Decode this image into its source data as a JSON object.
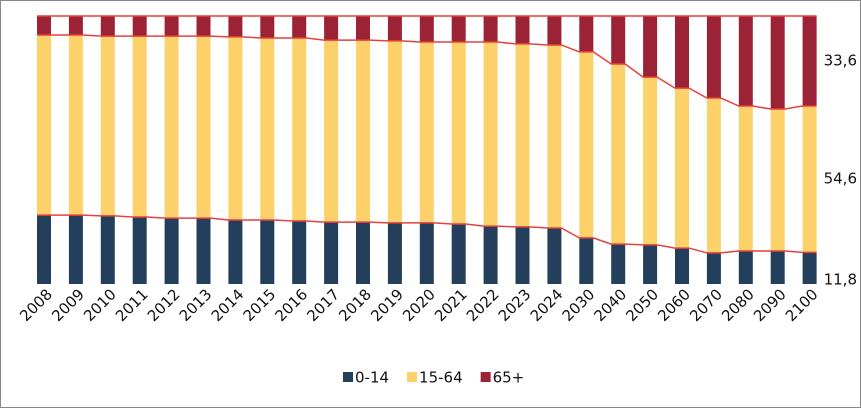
{
  "chart_data": {
    "type": "stacked_bar_100",
    "categories": [
      "2008",
      "2009",
      "2010",
      "2011",
      "2012",
      "2013",
      "2014",
      "2015",
      "2016",
      "2017",
      "2018",
      "2019",
      "2020",
      "2021",
      "2022",
      "2023",
      "2024",
      "2030",
      "2040",
      "2050",
      "2060",
      "2070",
      "2080",
      "2090",
      "2100"
    ],
    "series": [
      {
        "name": "0-14",
        "color": "#243f5c",
        "values": [
          25.7,
          25.7,
          25.4,
          25.0,
          24.6,
          24.6,
          23.9,
          23.9,
          23.5,
          23.1,
          23.1,
          22.8,
          22.8,
          22.4,
          21.6,
          21.3,
          20.9,
          17.2,
          14.9,
          14.6,
          13.4,
          11.6,
          12.3,
          12.3,
          11.8
        ],
        "value_labels": [
          null,
          null,
          null,
          null,
          null,
          null,
          null,
          null,
          null,
          null,
          null,
          null,
          null,
          null,
          null,
          null,
          null,
          null,
          null,
          null,
          null,
          null,
          null,
          null,
          "11,8"
        ]
      },
      {
        "name": "15-64",
        "color": "#fdd16a",
        "values": [
          67.2,
          67.2,
          67.1,
          67.5,
          67.9,
          67.9,
          68.3,
          67.9,
          68.3,
          67.9,
          67.9,
          67.9,
          67.5,
          67.9,
          68.7,
          68.3,
          68.3,
          69.4,
          67.2,
          62.6,
          59.7,
          57.8,
          54.1,
          53.0,
          54.6
        ],
        "value_labels": [
          null,
          null,
          null,
          null,
          null,
          null,
          null,
          null,
          null,
          null,
          null,
          null,
          null,
          null,
          null,
          null,
          null,
          null,
          null,
          null,
          null,
          null,
          null,
          null,
          "54,6"
        ]
      },
      {
        "name": "65+",
        "color": "#9b2335",
        "values": [
          7.1,
          7.1,
          7.5,
          7.5,
          7.5,
          7.5,
          7.8,
          8.2,
          8.2,
          9.0,
          9.0,
          9.3,
          9.7,
          9.7,
          9.7,
          10.4,
          10.8,
          13.4,
          17.9,
          22.8,
          26.9,
          30.6,
          33.6,
          34.7,
          33.6
        ],
        "value_labels": [
          null,
          null,
          null,
          null,
          null,
          null,
          null,
          null,
          null,
          null,
          null,
          null,
          null,
          null,
          null,
          null,
          null,
          null,
          null,
          null,
          null,
          null,
          null,
          null,
          "33,6"
        ]
      }
    ],
    "line_color": "#e8413c",
    "ylim": [
      0,
      100
    ]
  }
}
